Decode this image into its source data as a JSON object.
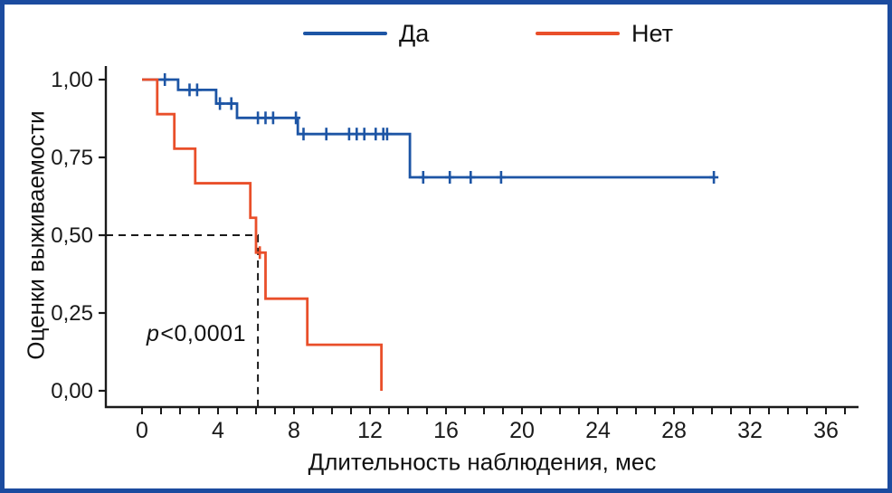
{
  "frame": {
    "border_color": "#1b4b9f",
    "background": "#ffffff",
    "text_color": "#1a1a1a"
  },
  "chart_data": {
    "type": "line",
    "subtype": "kaplan_meier_step",
    "title": "",
    "xlabel": "Длительность наблюдения, мес",
    "ylabel": "Оценки выживаемости",
    "xlim": [
      0,
      37
    ],
    "ylim": [
      0,
      1
    ],
    "grid": false,
    "legend_position": "top",
    "x_major_ticks": [
      0,
      4,
      8,
      12,
      16,
      20,
      24,
      28,
      32,
      36
    ],
    "x_minor_tick_step": 1,
    "y_ticks": [
      {
        "value": 1.0,
        "label": "1,00"
      },
      {
        "value": 0.75,
        "label": "0,75"
      },
      {
        "value": 0.5,
        "label": "0,50"
      },
      {
        "value": 0.25,
        "label": "0,25"
      },
      {
        "value": 0.0,
        "label": "0,00"
      }
    ],
    "annotation": {
      "italic": "p",
      "text": "<0,0001"
    },
    "median_guide": {
      "x_months": 6.1,
      "y_survival": 0.5
    },
    "series": [
      {
        "key": "yes",
        "label": "Да",
        "color": "#1d55a5",
        "steps_x_months_y_survival": [
          [
            0,
            1.0
          ],
          [
            1.9,
            0.967
          ],
          [
            3.9,
            0.923
          ],
          [
            5.0,
            0.877
          ],
          [
            8.2,
            0.825
          ],
          [
            14.1,
            0.686
          ]
        ],
        "end_x_months": 30.1,
        "censor_marks": [
          [
            1.2,
            1.0
          ],
          [
            2.5,
            0.967
          ],
          [
            2.9,
            0.967
          ],
          [
            4.1,
            0.923
          ],
          [
            4.7,
            0.923
          ],
          [
            6.1,
            0.877
          ],
          [
            6.5,
            0.877
          ],
          [
            6.9,
            0.877
          ],
          [
            8.1,
            0.877
          ],
          [
            8.5,
            0.825
          ],
          [
            9.7,
            0.825
          ],
          [
            10.9,
            0.825
          ],
          [
            11.3,
            0.825
          ],
          [
            11.7,
            0.825
          ],
          [
            12.3,
            0.825
          ],
          [
            12.7,
            0.825
          ],
          [
            12.9,
            0.825
          ],
          [
            14.8,
            0.686
          ],
          [
            16.2,
            0.686
          ],
          [
            17.3,
            0.686
          ],
          [
            18.9,
            0.686
          ],
          [
            30.1,
            0.686
          ]
        ]
      },
      {
        "key": "no",
        "label": "Нет",
        "color": "#e94f2a",
        "steps_x_months_y_survival": [
          [
            0,
            1.0
          ],
          [
            0.8,
            0.889
          ],
          [
            1.7,
            0.778
          ],
          [
            2.8,
            0.667
          ],
          [
            5.7,
            0.556
          ],
          [
            6.0,
            0.444
          ],
          [
            6.5,
            0.296
          ],
          [
            8.7,
            0.148
          ],
          [
            12.6,
            0.0
          ]
        ],
        "end_x_months": 12.6,
        "censor_marks": [
          [
            6.2,
            0.444
          ]
        ]
      }
    ]
  }
}
